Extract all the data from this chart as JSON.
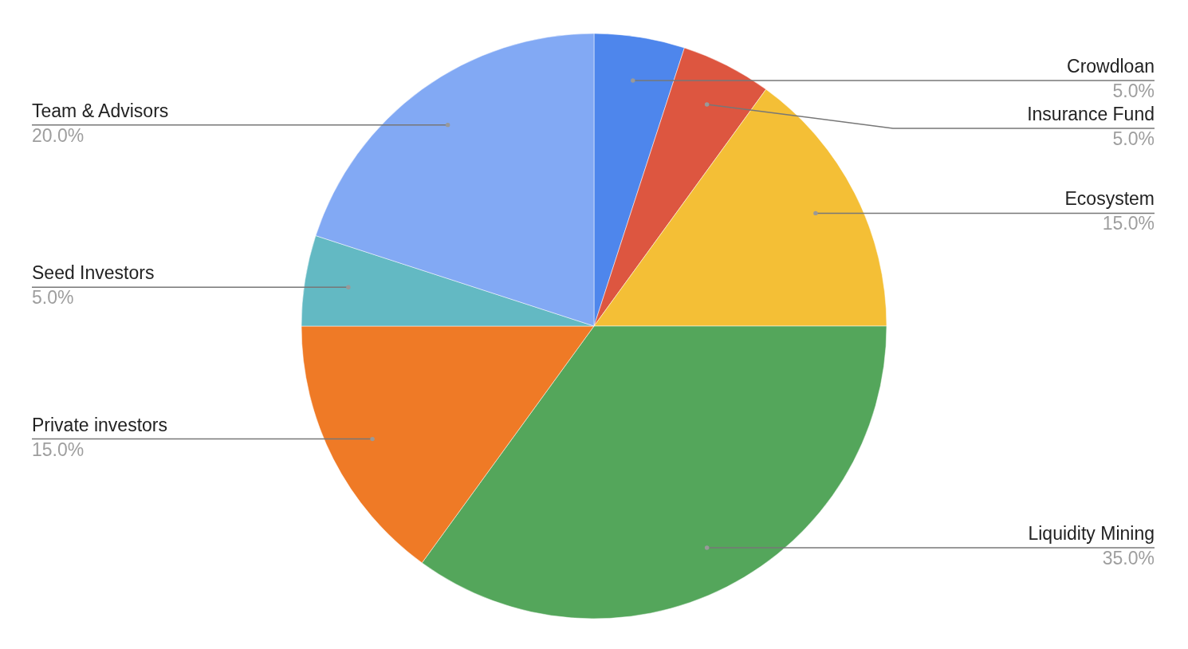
{
  "chart_data": {
    "type": "pie",
    "categories": [
      "Crowdloan",
      "Insurance Fund",
      "Ecosystem",
      "Liquidity Mining",
      "Private investors",
      "Seed Investors",
      "Team & Advisors"
    ],
    "values": [
      5.0,
      5.0,
      15.0,
      35.0,
      15.0,
      5.0,
      20.0
    ],
    "colors": [
      "#4e86ec",
      "#dd5640",
      "#f4bf36",
      "#54a65b",
      "#ef7a26",
      "#63b9c3",
      "#82a9f4"
    ],
    "value_labels": [
      "5.0%",
      "5.0%",
      "15.0%",
      "35.0%",
      "15.0%",
      "5.0%",
      "20.0%"
    ]
  }
}
